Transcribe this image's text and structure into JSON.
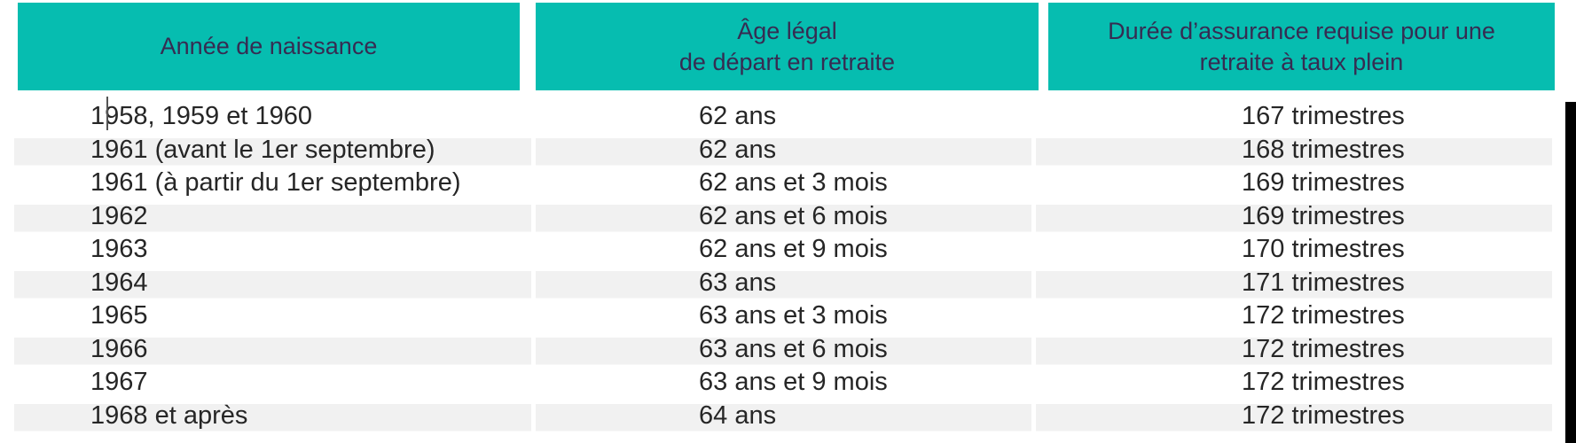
{
  "table": {
    "headers": [
      {
        "lines": [
          "Année de naissance",
          ""
        ]
      },
      {
        "lines": [
          "Âge légal",
          "de départ en retraite"
        ]
      },
      {
        "lines": [
          "Durée d’assurance requise pour une",
          "retraite à taux plein"
        ]
      }
    ],
    "rows": [
      {
        "cells": [
          "1958, 1959 et 1960",
          "62 ans",
          "167 trimestres"
        ]
      },
      {
        "cells": [
          "1961 (avant le 1er septembre)",
          "62 ans",
          "168 trimestres"
        ]
      },
      {
        "cells": [
          "1961 (à partir du 1er septembre)",
          "62 ans et 3 mois",
          "169 trimestres"
        ]
      },
      {
        "cells": [
          "1962",
          "62 ans et 6 mois",
          "169 trimestres"
        ]
      },
      {
        "cells": [
          "1963",
          "62 ans et 9 mois",
          "170 trimestres"
        ]
      },
      {
        "cells": [
          "1964",
          "63 ans",
          "171 trimestres"
        ]
      },
      {
        "cells": [
          "1965",
          "63 ans et 3 mois",
          "172 trimestres"
        ]
      },
      {
        "cells": [
          "1966",
          "63 ans et 6 mois",
          "172 trimestres"
        ]
      },
      {
        "cells": [
          "1967",
          "63 ans et 9 mois",
          "172 trimestres"
        ]
      },
      {
        "cells": [
          "1968 et après",
          "64 ans",
          "172 trimestres"
        ]
      }
    ]
  },
  "colors": {
    "header_bg": "#06BDB0",
    "header_text": "#362C52",
    "row_stripe": "#F1F1F1",
    "body_text": "#262626",
    "caret": "#555555",
    "right_bar": "#000000"
  }
}
